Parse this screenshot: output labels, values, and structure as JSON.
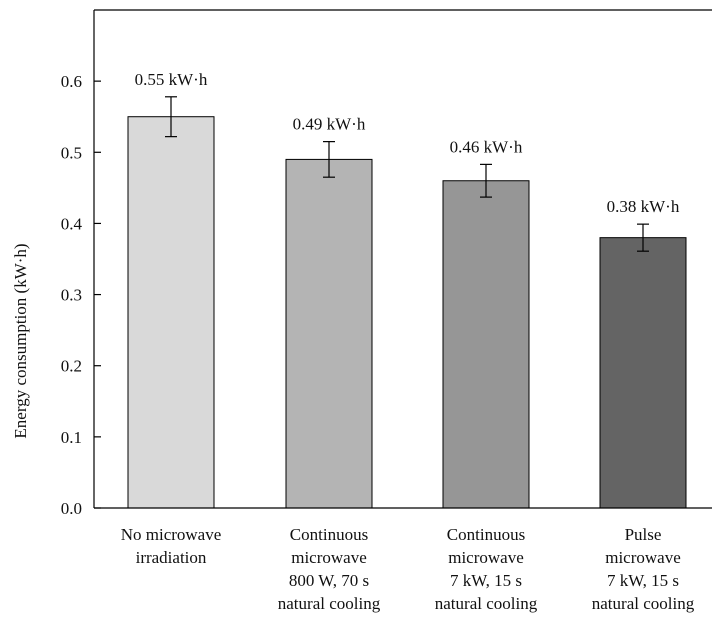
{
  "chart_data": {
    "type": "bar",
    "title": "",
    "xlabel": "",
    "ylabel": "Energy consumption (kW·h)",
    "ylim": [
      0,
      0.7
    ],
    "yticks": [
      "0.0",
      "0.1",
      "0.2",
      "0.3",
      "0.4",
      "0.5",
      "0.6"
    ],
    "grid": false,
    "categories": [
      "No microwave\nirradiation",
      "Continuous\nmicrowave\n800 W, 70 s\nnatural cooling",
      "Continuous\nmicrowave\n7 kW, 15 s\nnatural cooling",
      "Pulse\nmicrowave\n7 kW, 15 s\nnatural cooling"
    ],
    "values": [
      0.55,
      0.49,
      0.46,
      0.38
    ],
    "errors": [
      0.028,
      0.025,
      0.023,
      0.019
    ],
    "data_labels": [
      "0.55 kW·h",
      "0.49 kW·h",
      "0.46 kW·h",
      "0.38 kW·h"
    ],
    "colors": [
      "#d9d9d9",
      "#b4b4b4",
      "#969696",
      "#646464"
    ]
  }
}
